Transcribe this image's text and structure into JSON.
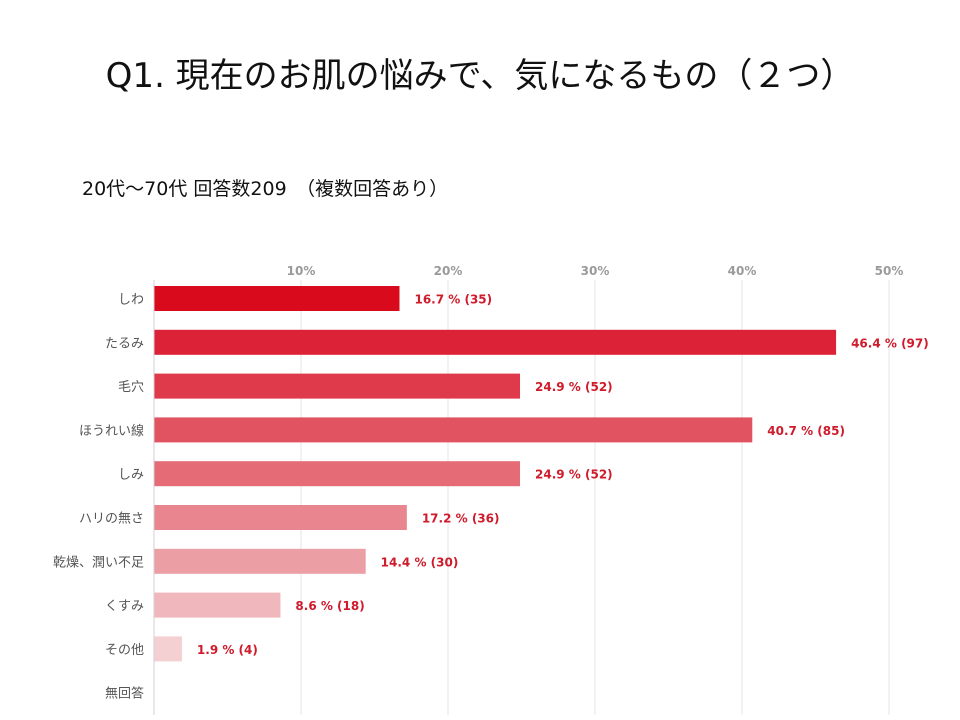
{
  "slide": {
    "title": "Q1. 現在のお肌の悩みで、気になるもの（２つ）",
    "subtitle": "20代～70代 回答数209　（複数回答あり）"
  },
  "chart_data": {
    "type": "bar",
    "orientation": "horizontal",
    "title": "",
    "xlabel": "",
    "ylabel": "",
    "xlim": [
      0,
      52
    ],
    "ticks": [
      10,
      20,
      30,
      40,
      50
    ],
    "tick_labels": [
      "10%",
      "20%",
      "30%",
      "40%",
      "50%"
    ],
    "grid": true,
    "categories": [
      "しわ",
      "たるみ",
      "毛穴",
      "ほうれい線",
      "しみ",
      "ハリの無さ",
      "乾燥、潤い不足",
      "くすみ",
      "その他",
      "無回答"
    ],
    "values": [
      16.7,
      46.4,
      24.9,
      40.7,
      24.9,
      17.2,
      14.4,
      8.6,
      1.9,
      0
    ],
    "data_labels": [
      "16.7 % (35)",
      "46.4 % (97)",
      "24.9 % (52)",
      "40.7 % (85)",
      "24.9 % (52)",
      "17.2 % (36)",
      "14.4 % (30)",
      "8.6 % (18)",
      "1.9 % (4)",
      ""
    ],
    "colors": [
      "#d90a1c",
      "#db2237",
      "#df3a4b",
      "#e25361",
      "#e56c77",
      "#e8858e",
      "#ec9ea5",
      "#f0b7bc",
      "#f4d0d3",
      "#f7e4e6"
    ]
  }
}
